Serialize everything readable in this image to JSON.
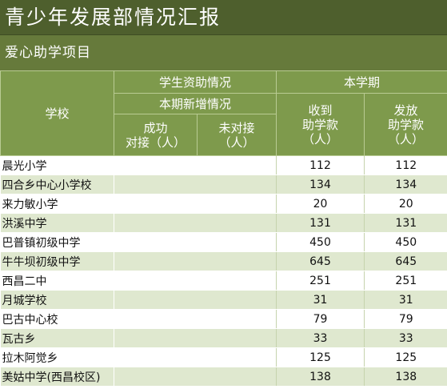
{
  "title": "青少年发展部情况汇报",
  "subtitle": "爱心助学项目",
  "headers": {
    "school": "学校",
    "student_aid": "学生资助情况",
    "new_this_period": "本期新增情况",
    "success_match_line1": "成功",
    "success_match_line2": "对接（人）",
    "unmatched_line1": "未对接",
    "unmatched_line2": "（人）",
    "this_semester": "本学期",
    "received_line1": "收到",
    "received_line2": "助学款",
    "received_line3": "（人）",
    "issued_line1": "发放",
    "issued_line2": "助学款",
    "issued_line3": "（人）"
  },
  "rows": [
    {
      "school": "晨光小学",
      "success": "",
      "unmatched": "",
      "received": "112",
      "issued": "112"
    },
    {
      "school": "四合乡中心小学校",
      "success": "",
      "unmatched": "",
      "received": "134",
      "issued": "134"
    },
    {
      "school": "来力敏小学",
      "success": "",
      "unmatched": "",
      "received": "20",
      "issued": "20"
    },
    {
      "school": "洪溪中学",
      "success": "",
      "unmatched": "",
      "received": "131",
      "issued": "131"
    },
    {
      "school": "巴普镇初级中学",
      "success": "",
      "unmatched": "",
      "received": "450",
      "issued": "450"
    },
    {
      "school": "牛牛坝初级中学",
      "success": "",
      "unmatched": "",
      "received": "645",
      "issued": "645"
    },
    {
      "school": "西昌二中",
      "success": "",
      "unmatched": "",
      "received": "251",
      "issued": "251"
    },
    {
      "school": "月城学校",
      "success": "",
      "unmatched": "",
      "received": "31",
      "issued": "31"
    },
    {
      "school": "巴古中心校",
      "success": "",
      "unmatched": "",
      "received": "79",
      "issued": "79"
    },
    {
      "school": "瓦古乡",
      "success": "",
      "unmatched": "",
      "received": "33",
      "issued": "33"
    },
    {
      "school": "拉木阿觉乡",
      "success": "",
      "unmatched": "",
      "received": "125",
      "issued": "125"
    },
    {
      "school": "美姑中学(西昌校区)",
      "success": "",
      "unmatched": "",
      "received": "138",
      "issued": "138"
    }
  ]
}
